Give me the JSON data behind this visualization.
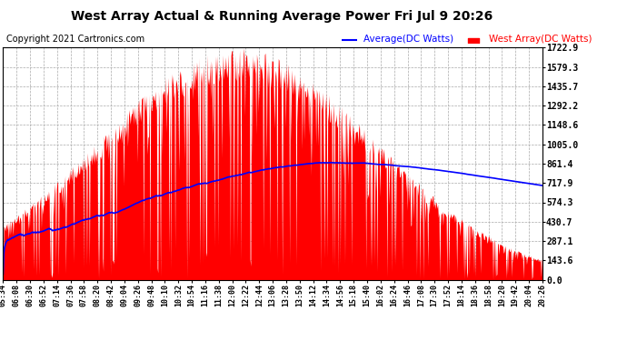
{
  "title": "West Array Actual & Running Average Power Fri Jul 9 20:26",
  "copyright": "Copyright 2021 Cartronics.com",
  "legend_avg": "Average(DC Watts)",
  "legend_west": "West Array(DC Watts)",
  "avg_color": "#0000ff",
  "west_color": "#ff0000",
  "bg_color": "#ffffff",
  "plot_bg_color": "#ffffff",
  "grid_color": "#aaaaaa",
  "yticks": [
    0.0,
    143.6,
    287.1,
    430.7,
    574.3,
    717.9,
    861.4,
    1005.0,
    1148.6,
    1292.2,
    1435.7,
    1579.3,
    1722.9
  ],
  "ymax": 1722.9,
  "ymin": 0.0,
  "xtick_labels": [
    "05:34",
    "06:08",
    "06:30",
    "06:52",
    "07:14",
    "07:36",
    "07:58",
    "08:20",
    "08:42",
    "09:04",
    "09:26",
    "09:48",
    "10:10",
    "10:32",
    "10:54",
    "11:16",
    "11:38",
    "12:00",
    "12:22",
    "12:44",
    "13:06",
    "13:28",
    "13:50",
    "14:12",
    "14:34",
    "14:56",
    "15:18",
    "15:40",
    "16:02",
    "16:24",
    "16:46",
    "17:08",
    "17:30",
    "17:52",
    "18:14",
    "18:36",
    "18:58",
    "19:20",
    "19:42",
    "20:04",
    "20:26"
  ]
}
